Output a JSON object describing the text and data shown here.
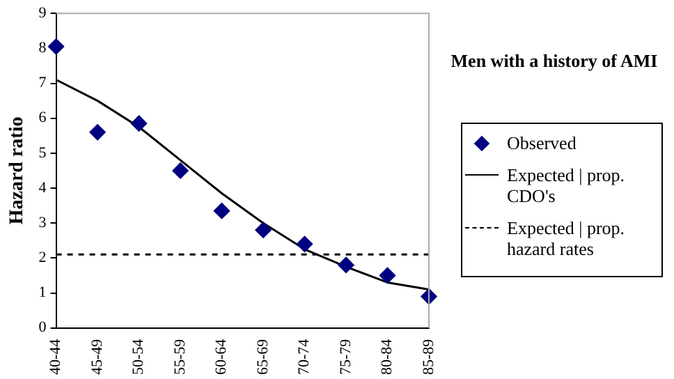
{
  "chart_data": {
    "type": "line",
    "title": "Men with a history of AMI",
    "ylabel": "Hazard ratio",
    "categories": [
      "40-44",
      "45-49",
      "50-54",
      "55-59",
      "60-64",
      "65-69",
      "70-74",
      "75-79",
      "80-84",
      "85-89"
    ],
    "series": [
      {
        "name": "Observed",
        "type": "scatter",
        "x": [
          "40-44",
          "45-49",
          "50-54",
          "55-59",
          "60-64",
          "65-69",
          "70-74",
          "75-79",
          "80-84",
          "85-89"
        ],
        "color": "#000080",
        "marker": "diamond",
        "values": [
          8.05,
          5.6,
          5.85,
          4.5,
          3.35,
          2.8,
          2.4,
          1.8,
          1.5,
          0.9
        ]
      },
      {
        "name": "Expected | prop. CDO's",
        "color": "#000000",
        "line_style": "solid",
        "marker": "none",
        "values": [
          7.1,
          6.5,
          5.75,
          4.8,
          3.85,
          3.0,
          2.25,
          1.75,
          1.3,
          1.1
        ]
      },
      {
        "name": "Expected | prop. hazard rates",
        "color": "#000000",
        "line_style": "dashed",
        "marker": "none",
        "values": [
          2.1,
          2.1,
          2.1,
          2.1,
          2.1,
          2.1,
          2.1,
          2.1,
          2.1,
          2.1
        ]
      }
    ],
    "ylim": [
      0,
      9
    ],
    "yticks": [
      0,
      1,
      2,
      3,
      4,
      5,
      6,
      7,
      8,
      9
    ],
    "grid": false,
    "legend": "right"
  }
}
